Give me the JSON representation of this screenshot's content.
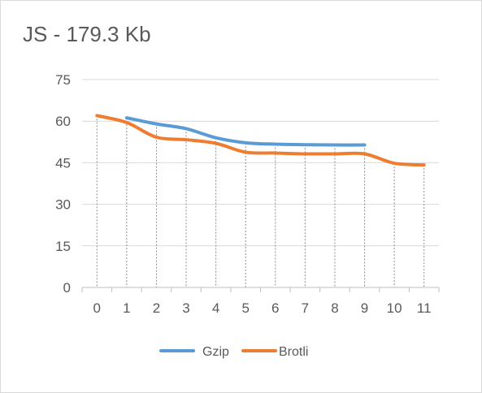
{
  "chart_data": {
    "type": "line",
    "title": "JS - 179.3 Kb",
    "xlabel": "",
    "ylabel": "",
    "x": [
      0,
      1,
      2,
      3,
      4,
      5,
      6,
      7,
      8,
      9,
      10,
      11
    ],
    "ylim": [
      0,
      75
    ],
    "yticks": [
      0,
      15,
      30,
      45,
      60,
      75
    ],
    "grid": true,
    "legend": "bottom",
    "series": [
      {
        "name": "Gzip",
        "color": "#5b9bd5",
        "values": [
          null,
          61.2,
          59,
          57.3,
          54,
          52.2,
          51.7,
          51.5,
          51.4,
          51.4,
          null,
          null
        ]
      },
      {
        "name": "Brotli",
        "color": "#ed7d31",
        "values": [
          62,
          59.5,
          54.2,
          53.3,
          52,
          48.8,
          48.5,
          48.2,
          48.2,
          48.2,
          44.8,
          44.2
        ]
      }
    ]
  }
}
